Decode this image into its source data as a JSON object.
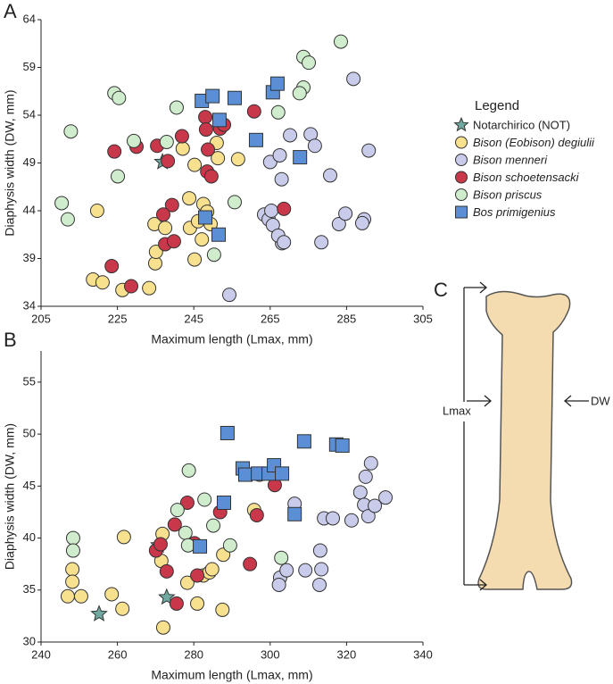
{
  "panel_labels": [
    "A",
    "B",
    "C"
  ],
  "legend": {
    "title": "Legend"
  },
  "diagram": {
    "length_label": "Lmax",
    "width_label": "DW"
  },
  "chart_data": [
    {
      "type": "scatter",
      "x_label": "Maximum length (Lmax, mm)",
      "y_label": "Diaphysis width (DW, mm)",
      "xlim": [
        205,
        305
      ],
      "xticks": [
        205,
        225,
        245,
        265,
        285,
        305
      ],
      "ylim": [
        34,
        64
      ],
      "yticks": [
        34,
        39,
        44,
        49,
        54,
        59,
        64
      ],
      "series": [
        {
          "name": "Notarchirico (NOT)",
          "color": "#6fa9a0",
          "marker": "star",
          "x": [
            236.8
          ],
          "values": [
            49.1
          ]
        },
        {
          "name": "Bison (Eobison) degiulii",
          "color": "#f7e08e",
          "marker": "circle",
          "x": [
            218.6,
            221.1,
            219.7,
            226.3,
            233.3,
            234.9,
            234.7,
            235.1,
            237.5,
            242.1,
            243.8,
            244.0,
            245.2,
            245.2,
            246.1,
            247.1,
            247.5,
            248.5,
            249.4,
            251.0,
            251.3,
            256.6
          ],
          "values": [
            36.8,
            36.5,
            44.0,
            35.7,
            35.9,
            38.5,
            42.6,
            39.7,
            42.2,
            50.5,
            45.3,
            42.2,
            48.8,
            38.9,
            42.9,
            41.0,
            44.7,
            43.9,
            42.6,
            51.1,
            49.5,
            49.4
          ]
        },
        {
          "name": "Bison menneri",
          "color": "#c9cbea",
          "marker": "circle",
          "x": [
            254.3,
            263.4,
            264.6,
            265.7,
            268.1,
            267.1,
            265.3,
            265.0,
            267.5,
            268.0,
            270.2,
            275.6,
            276.7,
            278.4,
            283.0,
            284.7,
            280.7,
            286.8,
            290.8,
            289.6,
            289.1,
            268.6
          ],
          "values": [
            35.2,
            43.6,
            43.1,
            42.5,
            40.6,
            41.4,
            44.0,
            49.1,
            49.8,
            47.3,
            51.9,
            52.0,
            50.8,
            40.7,
            42.6,
            43.7,
            47.7,
            57.8,
            50.3,
            43.1,
            42.7,
            40.7
          ]
        },
        {
          "name": "Bison schoetensacki",
          "color": "#c8374a",
          "marker": "circle",
          "x": [
            224.2,
            230.0,
            235.4,
            238.2,
            241.9,
            239.3,
            237.0,
            237.5,
            239.8,
            248.0,
            248.2,
            251.9,
            248.7,
            248.5,
            249.6,
            252.9,
            260.8,
            268.6,
            223.5,
            228.6
          ],
          "values": [
            50.2,
            50.7,
            50.8,
            49.2,
            51.8,
            44.6,
            43.6,
            40.5,
            40.8,
            53.8,
            52.5,
            52.6,
            50.4,
            48.1,
            47.6,
            53.0,
            54.4,
            44.2,
            38.2,
            36.1
          ]
        },
        {
          "name": "Bison priscus",
          "color": "#cfeccc",
          "marker": "circle",
          "x": [
            210.4,
            212.0,
            212.8,
            224.2,
            225.4,
            225.1,
            229.3,
            237.9,
            240.5,
            250.3,
            255.7,
            267.1,
            273.7,
            272.7,
            273.7,
            275.1,
            283.5
          ],
          "values": [
            44.8,
            43.1,
            52.3,
            56.3,
            55.8,
            47.6,
            51.3,
            51.2,
            54.8,
            39.4,
            44.9,
            54.3,
            56.9,
            56.3,
            60.1,
            59.5,
            61.7
          ]
        },
        {
          "name": "Bos primigenius",
          "color": "#5a8fd6",
          "marker": "square",
          "x": [
            247.1,
            249.9,
            255.7,
            251.7,
            261.3,
            265.7,
            266.9,
            272.8,
            248.0,
            251.5
          ],
          "values": [
            55.5,
            56.0,
            55.8,
            53.5,
            51.4,
            56.4,
            57.3,
            49.6,
            43.3,
            41.5
          ]
        }
      ]
    },
    {
      "type": "scatter",
      "x_label": "Maximum length (Lmax, mm)",
      "y_label": "Diaphysis width (DW, mm)",
      "xlim": [
        240,
        340
      ],
      "xticks": [
        240,
        260,
        280,
        300,
        320,
        340
      ],
      "ylim": [
        30,
        58
      ],
      "yticks": [
        30,
        35,
        40,
        45,
        50,
        55
      ],
      "series": [
        {
          "color": "#6fa9a0",
          "marker": "star",
          "x": [
            255.2,
            270.8,
            272.9
          ],
          "values": [
            32.7,
            39.3,
            34.3
          ]
        },
        {
          "color": "#f7e08e",
          "marker": "circle",
          "x": [
            247.0,
            250.5,
            258.5,
            248.2,
            248.2,
            261.7,
            261.3,
            271.8,
            271.5,
            272.0,
            280.9,
            282.5,
            284.1,
            284.8,
            287.7,
            287.5,
            278.3,
            295.8
          ],
          "values": [
            34.4,
            34.4,
            34.6,
            37.0,
            35.8,
            40.1,
            33.2,
            40.4,
            37.8,
            31.4,
            33.7,
            36.4,
            36.7,
            37.0,
            38.4,
            33.1,
            35.7,
            42.7
          ]
        },
        {
          "color": "#c9cbea",
          "marker": "circle",
          "x": [
            302.6,
            302.3,
            304.3,
            306.4,
            309.2,
            313.1,
            313.4,
            312.9,
            314.1,
            316.4,
            321.3,
            323.6,
            325.0,
            326.4,
            324.6,
            325.7,
            327.4,
            330.2
          ],
          "values": [
            36.2,
            35.5,
            36.9,
            43.3,
            36.9,
            38.8,
            37.0,
            35.5,
            41.9,
            41.9,
            41.7,
            44.4,
            45.9,
            47.2,
            43.2,
            42.1,
            43.1,
            43.9
          ]
        },
        {
          "color": "#c8374a",
          "marker": "circle",
          "x": [
            270.1,
            271.3,
            272.9,
            275.5,
            275.0,
            278.3,
            280.2,
            280.9,
            286.9,
            294.7,
            296.5,
            301.2
          ],
          "values": [
            38.8,
            39.4,
            36.8,
            33.7,
            41.3,
            43.4,
            39.5,
            36.4,
            42.5,
            37.5,
            42.2,
            45.1
          ]
        },
        {
          "color": "#cfeccc",
          "marker": "circle",
          "x": [
            248.4,
            278.7,
            275.7,
            277.8,
            278.5,
            282.8,
            285.1,
            289.5,
            297.2,
            302.9,
            248.4
          ],
          "values": [
            40.0,
            46.5,
            42.7,
            40.5,
            39.3,
            43.7,
            41.2,
            39.3,
            46.1,
            38.1,
            38.8
          ]
        },
        {
          "color": "#5a8fd6",
          "marker": "square",
          "x": [
            281.6,
            287.9,
            288.8,
            292.8,
            293.5,
            296.8,
            299.6,
            301.0,
            303.1,
            306.4,
            308.9,
            317.3,
            318.9
          ],
          "values": [
            39.2,
            43.4,
            50.1,
            46.7,
            46.1,
            46.2,
            46.2,
            47.0,
            46.2,
            42.3,
            49.3,
            49.0,
            48.9
          ]
        }
      ]
    }
  ]
}
